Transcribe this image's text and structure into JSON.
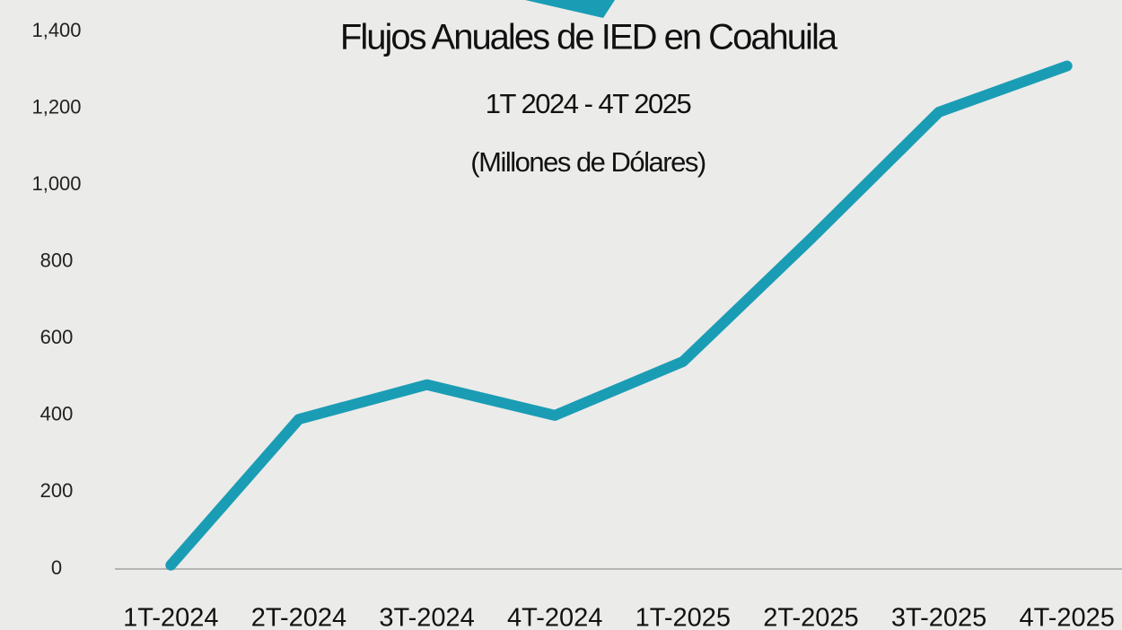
{
  "chart_data": {
    "type": "line",
    "title": "Flujos Anuales de IED en Coahuila",
    "subtitle": "1T 2024 - 4T 2025",
    "units": "(Millones de Dólares)",
    "categories": [
      "1T-2024",
      "2T-2024",
      "3T-2024",
      "4T-2024",
      "1T-2025",
      "2T-2025",
      "3T-2025",
      "4T-2025"
    ],
    "series": [
      {
        "color": "#1a9db4",
        "values": [
          10,
          390,
          480,
          400,
          540,
          860,
          1190,
          1310
        ]
      }
    ],
    "ylim": [
      0,
      1400
    ],
    "yticks": [
      0,
      200,
      400,
      600,
      800,
      {
        "value": 1000,
        "label": "1,000"
      },
      {
        "value": 1200,
        "label": "1,200"
      },
      {
        "value": 1400,
        "label": "1,400"
      }
    ],
    "grid": false
  }
}
